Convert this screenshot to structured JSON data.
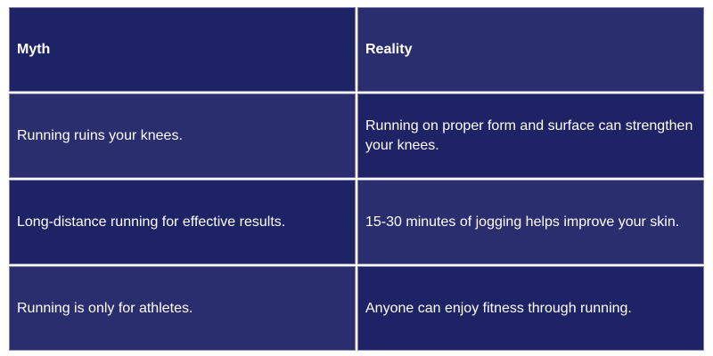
{
  "colors": {
    "dark": "#1e2366",
    "light": "#2a2e6e",
    "text": "#ffffff"
  },
  "header": {
    "myth": "Myth",
    "reality": "Reality"
  },
  "rows": [
    {
      "myth": "Running ruins your knees.",
      "reality": "Running on proper form and surface can strengthen your knees."
    },
    {
      "myth": "Long-distance running for effective results.",
      "reality": "15-30 minutes of jogging helps improve your skin."
    },
    {
      "myth": "Running is only for athletes.",
      "reality": "Anyone can enjoy fitness through running."
    }
  ]
}
